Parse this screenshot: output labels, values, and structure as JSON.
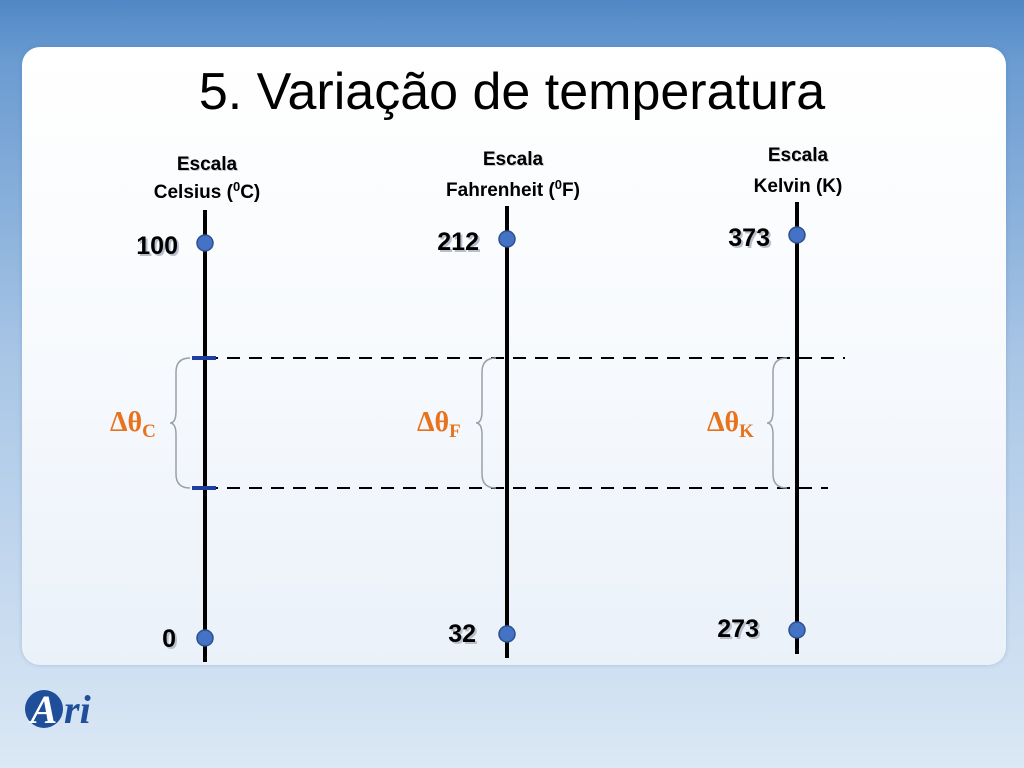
{
  "slide": {
    "title": "5. Variação de temperatura"
  },
  "scales": [
    {
      "id": "celsius",
      "label_line1": "Escala",
      "label_line2_prefix": "Celsius (",
      "label_superscript": "0",
      "label_line2_suffix": "C)",
      "upper_value": "100",
      "lower_value": "0",
      "delta_symbol": "Δθ",
      "delta_subscript": "C"
    },
    {
      "id": "fahrenheit",
      "label_line1": "Escala",
      "label_line2_prefix": "Fahrenheit (",
      "label_superscript": "0",
      "label_line2_suffix": "F)",
      "upper_value": "212",
      "lower_value": "32",
      "delta_symbol": "Δθ",
      "delta_subscript": "F"
    },
    {
      "id": "kelvin",
      "label_line1": "Escala",
      "label_line2_prefix": "Kelvin (K)",
      "label_superscript": "",
      "label_line2_suffix": "",
      "upper_value": "373",
      "lower_value": "273",
      "delta_symbol": "Δθ",
      "delta_subscript": "K"
    }
  ],
  "logo": {
    "letter": "A",
    "text": "ri"
  },
  "colors": {
    "axis": "#000000",
    "marker": "#4472c4",
    "marker_stroke": "#2f4f8f",
    "delta": "#e8731c",
    "interval_tick": "#1f3fa0",
    "brace": "#9aa0a8",
    "logo_blue": "#1f4e9a"
  }
}
